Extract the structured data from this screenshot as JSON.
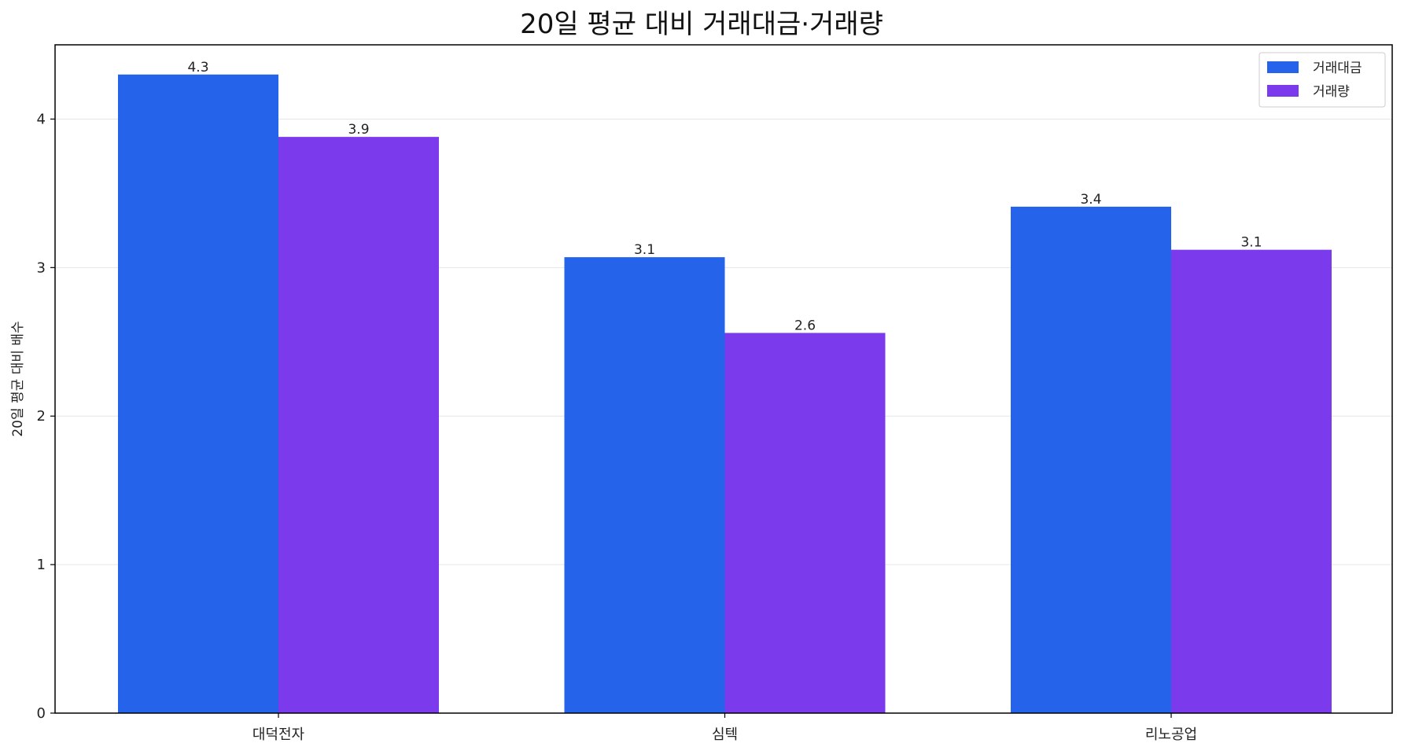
{
  "chart_data": {
    "type": "bar",
    "title": "20일 평균 대비 거래대금·거래량",
    "xlabel": "",
    "ylabel": "20일 평균 대비 배수",
    "categories": [
      "대덕전자",
      "심텍",
      "리노공업"
    ],
    "series": [
      {
        "name": "거래대금",
        "color": "#2563eb",
        "values": [
          4.3,
          3.07,
          3.41
        ],
        "labels": [
          "4.3",
          "3.1",
          "3.4"
        ]
      },
      {
        "name": "거래량",
        "color": "#7c3aed",
        "values": [
          3.88,
          2.56,
          3.12
        ],
        "labels": [
          "3.9",
          "2.6",
          "3.1"
        ]
      }
    ],
    "ylim": [
      0,
      4.5
    ],
    "yticks": [
      "0",
      "1",
      "2",
      "3",
      "4"
    ],
    "grid": "horizontal",
    "legend_position": "top-right"
  }
}
